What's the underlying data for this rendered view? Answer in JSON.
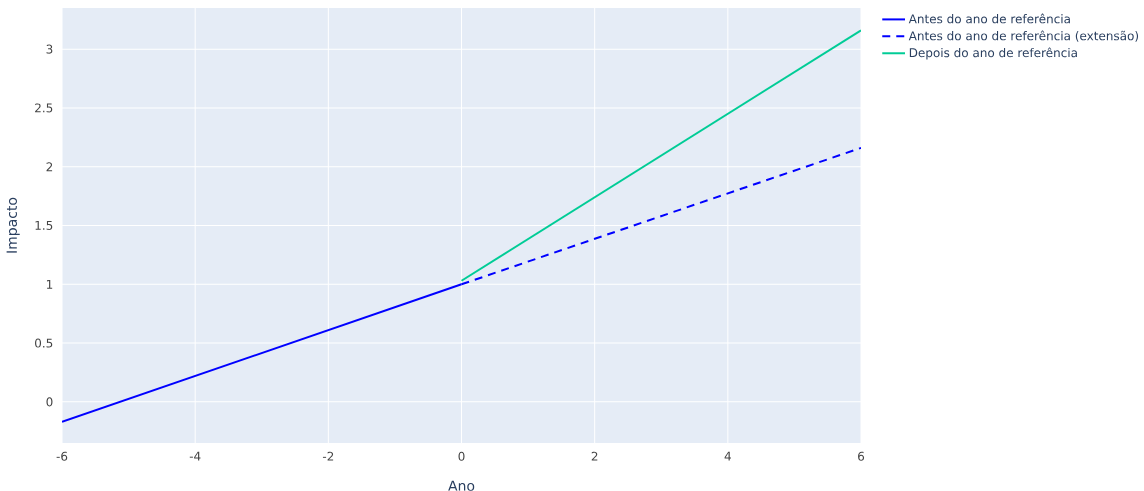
{
  "chart_data": {
    "type": "line",
    "xlabel": "Ano",
    "ylabel": "Impacto",
    "xlim": [
      -6,
      6
    ],
    "xticks": [
      -6,
      -4,
      -2,
      0,
      2,
      4,
      6
    ],
    "ylim": [
      -0.35,
      3.35
    ],
    "yticks": [
      0,
      0.5,
      1,
      1.5,
      2,
      2.5,
      3
    ],
    "grid": true,
    "legend": "top right",
    "series": [
      {
        "name": "Antes do ano de referência",
        "color": "#0000ff",
        "line_style": "solid",
        "x": [
          -6,
          0
        ],
        "values": [
          -0.17,
          1.0
        ]
      },
      {
        "name": "Antes do ano de referência (extensão)",
        "color": "#0000ff",
        "line_style": "dashed",
        "x": [
          0,
          6
        ],
        "values": [
          1.0,
          2.16
        ]
      },
      {
        "name": "Depois do ano de referência",
        "color": "#00cc96",
        "line_style": "solid",
        "x": [
          0,
          6
        ],
        "values": [
          1.03,
          3.16
        ]
      }
    ]
  }
}
